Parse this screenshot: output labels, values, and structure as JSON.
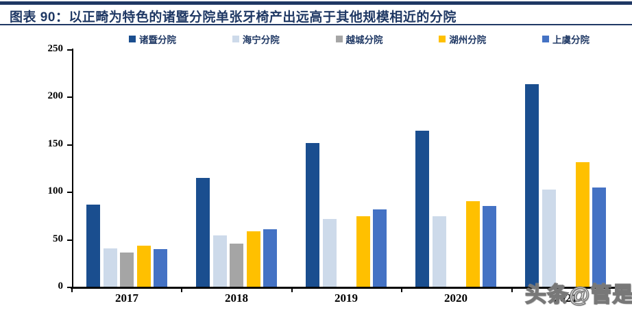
{
  "header": {
    "prefix": "图表 90：",
    "title": "以正畸为特色的诸暨分院单张牙椅产出远高于其他规模相近的分院"
  },
  "colors": {
    "accent_navy": "#1F3864",
    "axis": "#000000"
  },
  "chart_data": {
    "type": "bar",
    "categories": [
      "2017",
      "2018",
      "2019",
      "2020",
      "2021"
    ],
    "series": [
      {
        "key": "zhuji",
        "name": "诸暨分院",
        "color": "#1A4E8F",
        "values": [
          87,
          115,
          152,
          165,
          214
        ]
      },
      {
        "key": "haining",
        "name": "海宁分院",
        "color": "#CDDAEA",
        "values": [
          41,
          55,
          72,
          75,
          103
        ]
      },
      {
        "key": "yuecheng",
        "name": "越城分院",
        "color": "#A5A5A5",
        "values": [
          37,
          46,
          null,
          null,
          null
        ]
      },
      {
        "key": "huzhou",
        "name": "湖州分院",
        "color": "#FFC000",
        "values": [
          44,
          59,
          75,
          91,
          132
        ]
      },
      {
        "key": "shangyu",
        "name": "上虞分院",
        "color": "#4472C4",
        "values": [
          40,
          61,
          82,
          86,
          105
        ]
      }
    ],
    "ylim": [
      0,
      250
    ],
    "yticks": [
      0,
      50,
      100,
      150,
      200,
      250
    ],
    "grid": false,
    "legend_position": "top",
    "xlabel": "",
    "ylabel": ""
  },
  "watermark": {
    "text": "头条@管是"
  }
}
